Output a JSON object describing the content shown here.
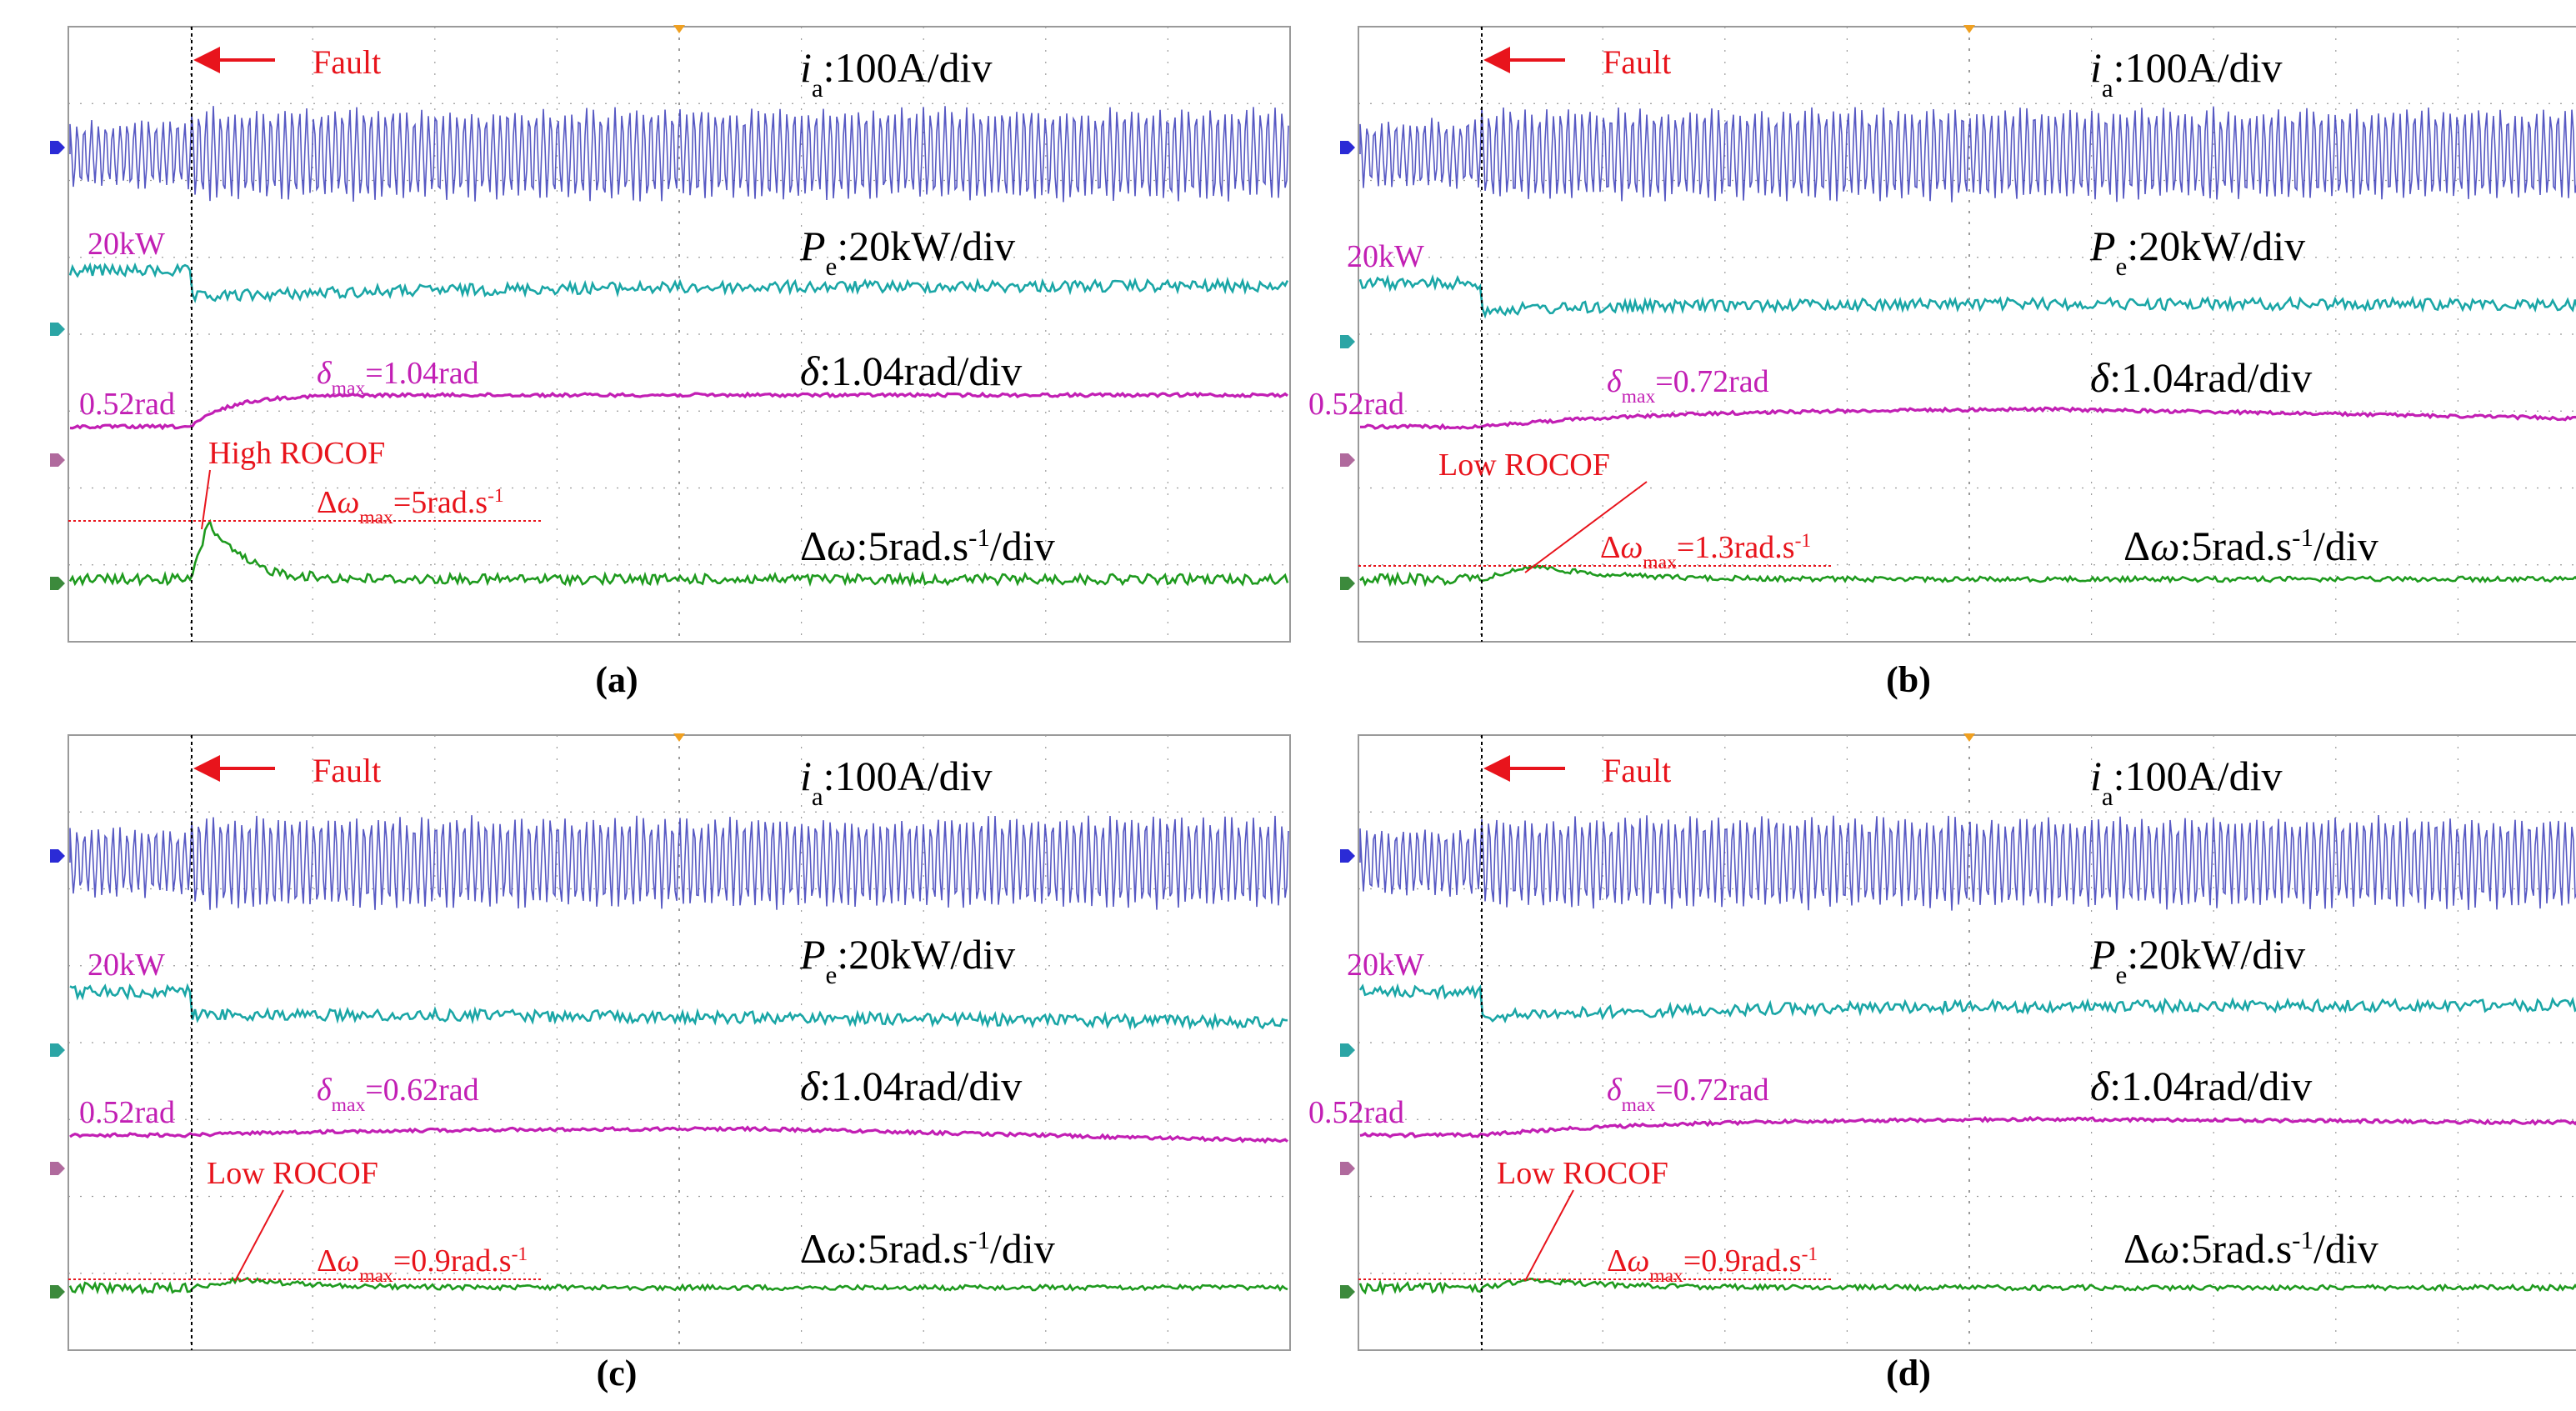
{
  "colors": {
    "current": "#3a3cb8",
    "power": "#1aa6a6",
    "angle": "#c21fb4",
    "freq": "#1e9a1e",
    "annotation": "#e8141c",
    "grid": "#9a9a9a"
  },
  "channel_markers": [
    "#2b2bd6",
    "#2ba5a5",
    "#b06a9d",
    "#3c8a3c"
  ],
  "common_labels": {
    "fault": "Fault",
    "ia_sym": "i",
    "ia_sub": "a",
    "ia_rest": ":100A/div",
    "pe_sym": "P",
    "pe_sub": "e",
    "pe_rest": ":20kW/div",
    "delta_sym": "δ",
    "delta_rest": ":1.04rad/div",
    "dw_pre": "Δ",
    "dw_sym": "ω",
    "dw_rest": ":5rad.s",
    "dw_sup": "-1",
    "dw_end": "/div",
    "pe_level": "20kW",
    "delta_level": "0.52rad",
    "delta_max_sym": "δ",
    "delta_max_sub": "max",
    "dw_max_pre": "Δ",
    "dw_max_sym": "ω",
    "dw_max_sub": "max",
    "dw_max_unit": "rad.s",
    "dw_max_sup": "-1"
  },
  "chart_data": [
    {
      "type": "line",
      "panel": "(a)",
      "rocof": "High ROCOF",
      "delta_max": "=1.04rad",
      "dw_max": "=5",
      "series": [
        {
          "name": "i_a",
          "scale": "100A/div"
        },
        {
          "name": "P_e",
          "scale": "20kW/div",
          "pre_fault": 20
        },
        {
          "name": "δ",
          "scale": "1.04rad/div",
          "pre_fault": 0.52,
          "max": 1.04
        },
        {
          "name": "Δω",
          "scale": "5rad.s-1/div",
          "max": 5
        }
      ]
    },
    {
      "type": "line",
      "panel": "(b)",
      "rocof": "Low ROCOF",
      "delta_max": "=0.72rad",
      "dw_max": "=1.3",
      "series": [
        {
          "name": "i_a",
          "scale": "100A/div"
        },
        {
          "name": "P_e",
          "scale": "20kW/div",
          "pre_fault": 20
        },
        {
          "name": "δ",
          "scale": "1.04rad/div",
          "pre_fault": 0.52,
          "max": 0.72
        },
        {
          "name": "Δω",
          "scale": "5rad.s-1/div",
          "max": 1.3
        }
      ]
    },
    {
      "type": "line",
      "panel": "(c)",
      "rocof": "Low ROCOF",
      "delta_max": "=0.62rad",
      "dw_max": "=0.9",
      "series": [
        {
          "name": "i_a",
          "scale": "100A/div"
        },
        {
          "name": "P_e",
          "scale": "20kW/div",
          "pre_fault": 20
        },
        {
          "name": "δ",
          "scale": "1.04rad/div",
          "pre_fault": 0.52,
          "max": 0.62
        },
        {
          "name": "Δω",
          "scale": "5rad.s-1/div",
          "max": 0.9
        }
      ]
    },
    {
      "type": "line",
      "panel": "(d)",
      "rocof": "Low ROCOF",
      "delta_max": "=0.72rad",
      "dw_max": "=0.9",
      "series": [
        {
          "name": "i_a",
          "scale": "100A/div"
        },
        {
          "name": "P_e",
          "scale": "20kW/div",
          "pre_fault": 20
        },
        {
          "name": "δ",
          "scale": "1.04rad/div",
          "pre_fault": 0.52,
          "max": 0.72
        },
        {
          "name": "Δω",
          "scale": "5rad.s-1/div",
          "max": 0.9
        }
      ]
    }
  ]
}
